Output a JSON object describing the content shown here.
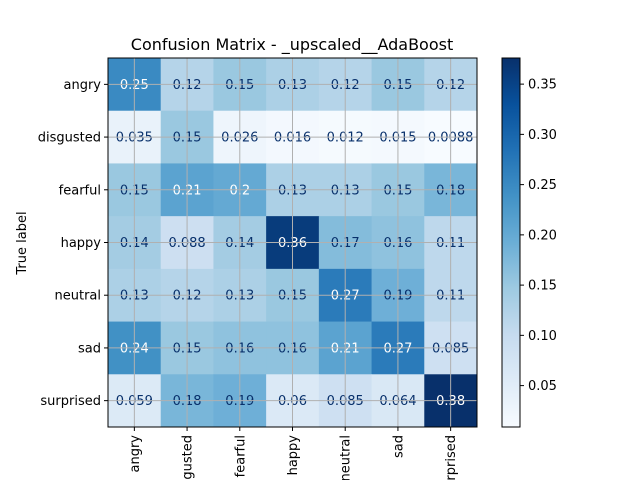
{
  "chart_data": {
    "type": "heatmap",
    "title": "Confusion Matrix - _upscaled__AdaBoost",
    "ylabel": "True label",
    "xlabel": "",
    "rows": [
      "angry",
      "disgusted",
      "fearful",
      "happy",
      "neutral",
      "sad",
      "surprised"
    ],
    "columns": [
      "angry",
      "disgusted",
      "fearful",
      "happy",
      "neutral",
      "sad",
      "surprised"
    ],
    "x_tick_labels_visible": [
      "angry",
      "isgusted",
      "fearful",
      "happy",
      "neutral",
      "sad",
      "urprised"
    ],
    "values": [
      [
        0.25,
        0.12,
        0.15,
        0.13,
        0.12,
        0.15,
        0.12
      ],
      [
        0.035,
        0.15,
        0.026,
        0.016,
        0.012,
        0.015,
        0.0088
      ],
      [
        0.15,
        0.21,
        0.2,
        0.13,
        0.13,
        0.15,
        0.18
      ],
      [
        0.14,
        0.088,
        0.14,
        0.36,
        0.17,
        0.16,
        0.11
      ],
      [
        0.13,
        0.12,
        0.13,
        0.15,
        0.27,
        0.19,
        0.11
      ],
      [
        0.24,
        0.15,
        0.16,
        0.16,
        0.21,
        0.27,
        0.085
      ],
      [
        0.059,
        0.18,
        0.19,
        0.06,
        0.085,
        0.064,
        0.38
      ]
    ],
    "colormap": "Blues",
    "color_range": [
      0.0088,
      0.376
    ],
    "colorbar_ticks": [
      0.05,
      0.1,
      0.15,
      0.2,
      0.25,
      0.3,
      0.35
    ],
    "colorbar_tick_labels": [
      "0.05",
      "0.10",
      "0.15",
      "0.20",
      "0.25",
      "0.30",
      "0.35"
    ],
    "grid": true,
    "text_color_dark": "#08306b",
    "text_color_light": "#ffffff"
  }
}
